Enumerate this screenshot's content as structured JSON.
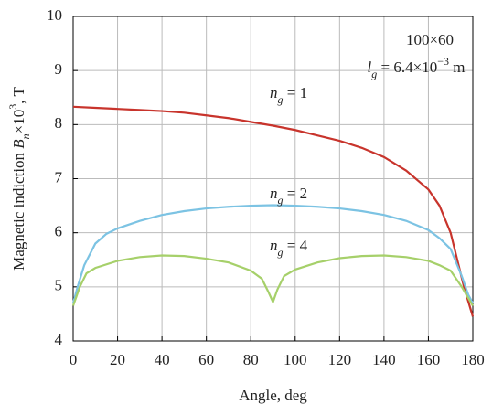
{
  "chart_data": {
    "type": "line",
    "xlabel": "Angle, deg",
    "ylabel": [
      {
        "text": "Magnetic indiction ",
        "kind": "normal"
      },
      {
        "text": "B",
        "kind": "italic"
      },
      {
        "text": "n",
        "kind": "sub"
      },
      {
        "text": "×10",
        "kind": "normal"
      },
      {
        "text": "3",
        "kind": "sup"
      },
      {
        "text": ", T",
        "kind": "normal"
      }
    ],
    "xlim": [
      0,
      180
    ],
    "xticks": [
      0,
      20,
      40,
      60,
      80,
      100,
      120,
      140,
      160,
      180
    ],
    "ylim": [
      4,
      10
    ],
    "yticks": [
      4,
      5,
      6,
      7,
      8,
      9,
      10
    ],
    "grid": true,
    "annotations": [
      [
        {
          "text": "100×60",
          "kind": "normal"
        }
      ],
      [
        {
          "text": "l",
          "kind": "italic"
        },
        {
          "text": "g",
          "kind": "sub"
        },
        {
          "text": " = 6.4×10",
          "kind": "normal"
        },
        {
          "text": "−3",
          "kind": "sup"
        },
        {
          "text": " m",
          "kind": "normal"
        }
      ]
    ],
    "series": [
      {
        "label": [
          {
            "text": "n",
            "kind": "italic"
          },
          {
            "text": "g",
            "kind": "sub"
          },
          {
            "text": " = 1",
            "kind": "normal"
          }
        ],
        "color": "#c8342c",
        "x": [
          0,
          10,
          20,
          30,
          40,
          50,
          60,
          70,
          80,
          90,
          100,
          110,
          120,
          130,
          140,
          150,
          160,
          165,
          170,
          173,
          176,
          180
        ],
        "values": [
          8.33,
          8.31,
          8.29,
          8.27,
          8.25,
          8.22,
          8.17,
          8.12,
          8.05,
          7.98,
          7.9,
          7.8,
          7.7,
          7.57,
          7.4,
          7.15,
          6.8,
          6.5,
          6.0,
          5.5,
          5.0,
          4.45
        ]
      },
      {
        "label": [
          {
            "text": "n",
            "kind": "italic"
          },
          {
            "text": "g",
            "kind": "sub"
          },
          {
            "text": " = 2",
            "kind": "normal"
          }
        ],
        "color": "#7cc3e3",
        "x": [
          0,
          2,
          5,
          10,
          15,
          20,
          30,
          40,
          50,
          60,
          70,
          80,
          90,
          100,
          110,
          120,
          130,
          140,
          150,
          160,
          165,
          170,
          175,
          178,
          180
        ],
        "values": [
          4.7,
          5.0,
          5.4,
          5.8,
          5.98,
          6.08,
          6.22,
          6.33,
          6.4,
          6.45,
          6.48,
          6.5,
          6.51,
          6.5,
          6.48,
          6.45,
          6.4,
          6.33,
          6.22,
          6.05,
          5.9,
          5.7,
          5.2,
          4.85,
          4.7
        ]
      },
      {
        "label": [
          {
            "text": "n",
            "kind": "italic"
          },
          {
            "text": "g",
            "kind": "sub"
          },
          {
            "text": " = 4",
            "kind": "normal"
          }
        ],
        "color": "#a6d06a",
        "x": [
          0,
          3,
          6,
          10,
          20,
          30,
          40,
          50,
          60,
          70,
          80,
          85,
          88,
          90,
          92,
          95,
          100,
          110,
          120,
          130,
          140,
          150,
          160,
          165,
          170,
          175,
          180
        ],
        "values": [
          4.65,
          5.0,
          5.25,
          5.35,
          5.48,
          5.55,
          5.58,
          5.57,
          5.52,
          5.45,
          5.3,
          5.15,
          4.9,
          4.72,
          4.95,
          5.2,
          5.32,
          5.45,
          5.53,
          5.57,
          5.58,
          5.55,
          5.48,
          5.4,
          5.3,
          5.0,
          4.65
        ]
      }
    ]
  }
}
